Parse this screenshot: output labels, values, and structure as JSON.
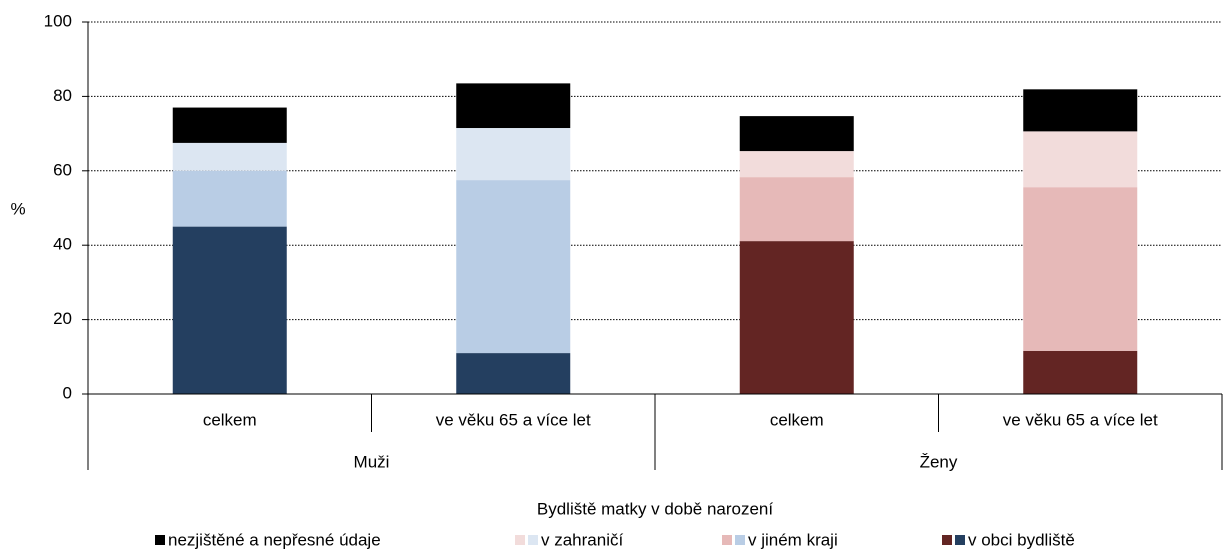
{
  "chart_data": {
    "type": "stacked_bar",
    "ylabel": "%",
    "categories": [
      "celkem",
      "ve věku 65 a více let",
      "celkem",
      "ve věku 65 a více let"
    ],
    "groups": [
      "Muži",
      "Ženy"
    ],
    "ylim": [
      0,
      100
    ],
    "yticks": [
      0,
      20,
      40,
      60,
      80,
      100
    ],
    "grid": true,
    "legend_title": "Bydliště matky v době narození",
    "series": [
      {
        "name": "v obci bydliště",
        "colors": [
          "#243f60",
          "#243f60",
          "#632523",
          "#632523"
        ],
        "values": [
          45,
          11,
          41.1,
          11.6
        ]
      },
      {
        "name": "v jiném kraji",
        "colors": [
          "#b9cde5",
          "#b9cde5",
          "#e6b9b8",
          "#e6b9b8"
        ],
        "values": [
          15,
          46.5,
          17.2,
          44
        ]
      },
      {
        "name": "v zahraničí",
        "colors": [
          "#dce6f2",
          "#dce6f2",
          "#f2dcdb",
          "#f2dcdb"
        ],
        "values": [
          7.5,
          14,
          7,
          15
        ]
      },
      {
        "name": "nezjištěné a nepřesné údaje",
        "colors": [
          "#000000",
          "#000000",
          "#000000",
          "#000000"
        ],
        "values": [
          9.5,
          12,
          9.4,
          11.3
        ]
      }
    ]
  }
}
